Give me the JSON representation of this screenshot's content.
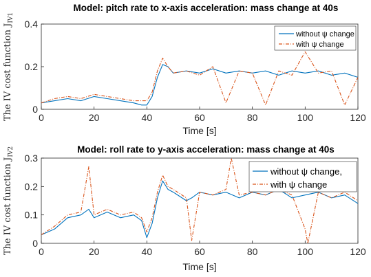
{
  "chart_data": [
    {
      "type": "line",
      "title": "Model: pitch rate to x-axis acceleration: mass change at 40s",
      "xlabel": "Time [s]",
      "ylabel": "The IV cost function J",
      "ylabel_subscript": "IV1",
      "xlim": [
        0,
        120
      ],
      "ylim": [
        0,
        0.4
      ],
      "xticks": [
        "0",
        "20",
        "40",
        "60",
        "80",
        "100",
        "120"
      ],
      "yticks": [
        "0",
        "0.2",
        "0.4"
      ],
      "legend_position": "top-right",
      "series": [
        {
          "name": "without ψ change",
          "color": "#0072BD",
          "style": "solid",
          "x": [
            0,
            5,
            10,
            15,
            20,
            25,
            30,
            35,
            38,
            40,
            42,
            44,
            46,
            48,
            50,
            55,
            60,
            65,
            70,
            75,
            80,
            85,
            90,
            95,
            100,
            105,
            110,
            115,
            120
          ],
          "y": [
            0.03,
            0.04,
            0.05,
            0.04,
            0.06,
            0.05,
            0.04,
            0.03,
            0.02,
            0.02,
            0.06,
            0.15,
            0.21,
            0.2,
            0.17,
            0.18,
            0.17,
            0.19,
            0.17,
            0.18,
            0.17,
            0.18,
            0.16,
            0.18,
            0.17,
            0.18,
            0.16,
            0.17,
            0.15
          ]
        },
        {
          "name": "with ψ change",
          "color": "#D95319",
          "style": "dashdot",
          "x": [
            0,
            5,
            10,
            15,
            20,
            25,
            30,
            35,
            38,
            40,
            42,
            44,
            46,
            48,
            50,
            55,
            60,
            65,
            70,
            75,
            80,
            85,
            90,
            95,
            100,
            105,
            110,
            115,
            120
          ],
          "y": [
            0.03,
            0.05,
            0.06,
            0.05,
            0.07,
            0.06,
            0.05,
            0.04,
            0.04,
            0.04,
            0.08,
            0.18,
            0.24,
            0.2,
            0.17,
            0.18,
            0.16,
            0.2,
            0.03,
            0.18,
            0.17,
            0.02,
            0.18,
            0.16,
            0.27,
            0.17,
            0.18,
            0.02,
            0.15
          ]
        }
      ]
    },
    {
      "type": "line",
      "title": "Model: roll rate to y-axis acceleration: mass change at 40s",
      "xlabel": "Time [s]",
      "ylabel": "The IV cost function J",
      "ylabel_subscript": "IV2",
      "xlim": [
        0,
        120
      ],
      "ylim": [
        0,
        0.3
      ],
      "xticks": [
        "0",
        "20",
        "40",
        "60",
        "80",
        "100",
        "120"
      ],
      "yticks": [
        "0",
        "0.1",
        "0.2",
        "0.3"
      ],
      "legend_position": "top-right",
      "series": [
        {
          "name": "without ψ change,",
          "color": "#0072BD",
          "style": "solid",
          "x": [
            0,
            5,
            10,
            15,
            18,
            20,
            25,
            30,
            35,
            38,
            40,
            42,
            44,
            46,
            48,
            50,
            55,
            57,
            60,
            65,
            70,
            75,
            80,
            85,
            90,
            95,
            100,
            105,
            110,
            115,
            120
          ],
          "y": [
            0.03,
            0.05,
            0.09,
            0.1,
            0.12,
            0.09,
            0.11,
            0.09,
            0.1,
            0.08,
            0.02,
            0.07,
            0.16,
            0.22,
            0.19,
            0.18,
            0.15,
            0.16,
            0.18,
            0.17,
            0.18,
            0.16,
            0.18,
            0.17,
            0.19,
            0.16,
            0.17,
            0.18,
            0.16,
            0.17,
            0.14
          ]
        },
        {
          "name": "with ψ change",
          "color": "#D95319",
          "style": "dashdot",
          "x": [
            0,
            5,
            10,
            15,
            18,
            20,
            25,
            30,
            35,
            38,
            40,
            42,
            44,
            46,
            48,
            50,
            55,
            57,
            60,
            65,
            70,
            72,
            75,
            80,
            85,
            90,
            95,
            100,
            101,
            105,
            110,
            115,
            120
          ],
          "y": [
            0.03,
            0.06,
            0.1,
            0.11,
            0.27,
            0.1,
            0.12,
            0.1,
            0.11,
            0.09,
            0.04,
            0.09,
            0.18,
            0.24,
            0.2,
            0.19,
            0.16,
            0.01,
            0.18,
            0.17,
            0.19,
            0.3,
            0.17,
            0.18,
            0.17,
            0.19,
            0.17,
            0.05,
            0.0,
            0.18,
            0.16,
            0.18,
            0.15
          ]
        }
      ]
    }
  ]
}
